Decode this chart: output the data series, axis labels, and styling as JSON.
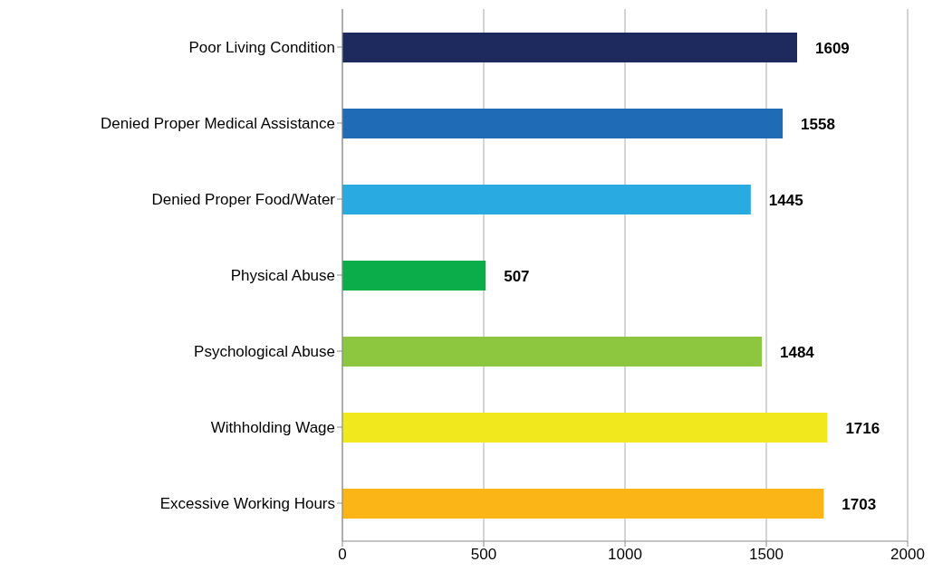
{
  "chart_data": {
    "type": "bar",
    "orientation": "horizontal",
    "categories": [
      "Poor Living Condition",
      "Denied Proper Medical Assistance",
      "Denied Proper Food/Water",
      "Physical Abuse",
      "Psychological Abuse",
      "Withholding Wage",
      "Excessive Working Hours"
    ],
    "values": [
      1609,
      1558,
      1445,
      507,
      1484,
      1716,
      1703
    ],
    "colors": [
      "#1e2a5e",
      "#1f6bb5",
      "#29abe2",
      "#0bac4a",
      "#8dc63f",
      "#f2e81e",
      "#fbb516"
    ],
    "xlim": [
      0,
      2000
    ],
    "xticks": [
      0,
      500,
      1000,
      1500,
      2000
    ],
    "grid": "x",
    "data_labels": true
  }
}
